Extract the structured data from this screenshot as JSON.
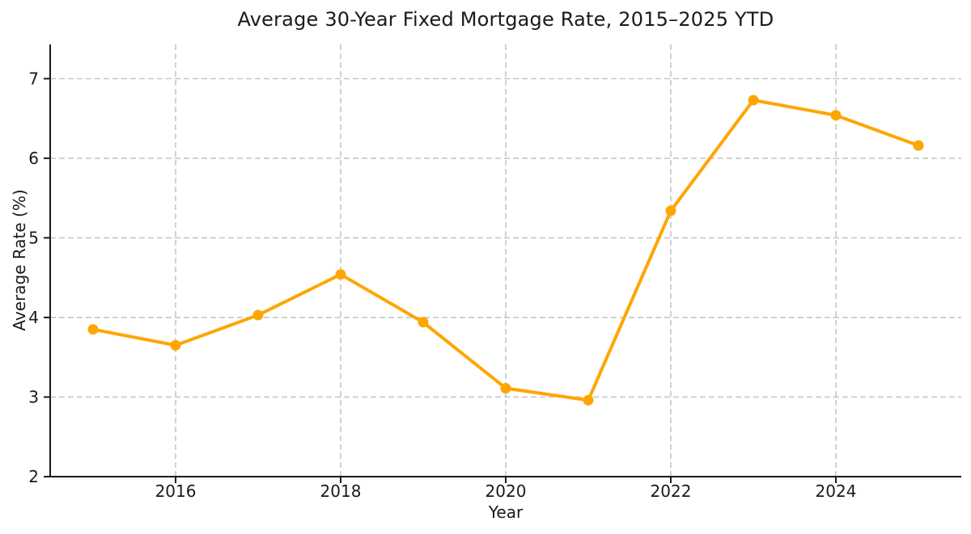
{
  "chart_data": {
    "type": "line",
    "title": "Average 30-Year Fixed Mortgage Rate, 2015–2025 YTD",
    "xlabel": "Year",
    "ylabel": "Average Rate (%)",
    "x": [
      2015,
      2016,
      2017,
      2018,
      2019,
      2020,
      2021,
      2022,
      2023,
      2024,
      2025
    ],
    "values": [
      3.85,
      3.65,
      4.03,
      4.54,
      3.94,
      3.11,
      2.96,
      5.34,
      6.73,
      6.54,
      6.16
    ],
    "series_name": "Average 30-Year Fixed Mortgage Rate",
    "xticks": [
      2016,
      2018,
      2020,
      2022,
      2024
    ],
    "yticks": [
      2,
      3,
      4,
      5,
      6,
      7
    ],
    "xlim": [
      2014.48,
      2025.52
    ],
    "ylim": [
      2,
      7.43
    ],
    "grid": true,
    "grid_style": "dashed",
    "legend": false,
    "marker": "circle",
    "colors": {
      "line": "#FFA500",
      "marker": "#FFA500",
      "grid": "#c6c6c6",
      "axis": "#1a1a1a",
      "text": "#1a1a1a",
      "background": "#ffffff"
    }
  }
}
